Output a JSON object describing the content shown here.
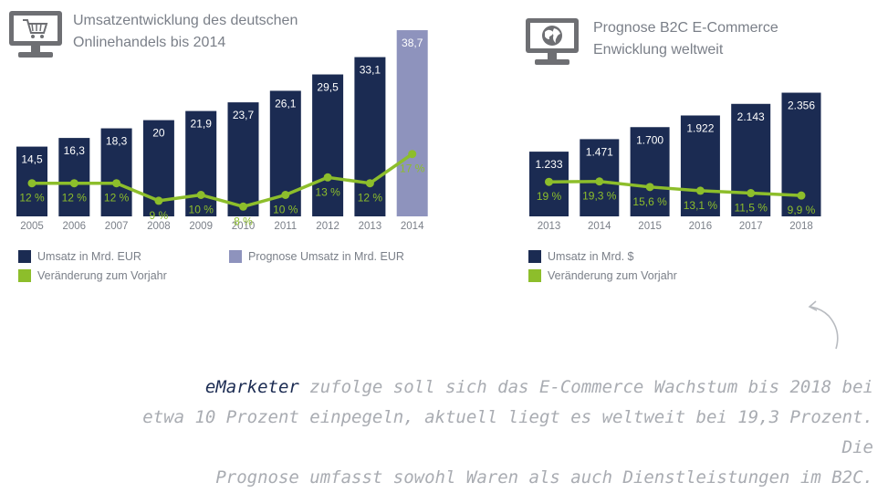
{
  "colors": {
    "bar": "#1b2b52",
    "forecast_bar": "#8e93bd",
    "line": "#8dbe2b",
    "axis_text": "#7a7f88",
    "icon": "#6e6f73"
  },
  "left": {
    "icon": "shopping-cart-monitor-icon",
    "title_line1": "Umsatzentwicklung des deutschen",
    "title_line2": "Onlinehandels bis 2014",
    "legend": {
      "umsatz": "Umsatz in Mrd. EUR",
      "prognose": "Prognose Umsatz in Mrd. EUR",
      "veraenderung": "Veränderung zum Vorjahr"
    }
  },
  "right": {
    "icon": "globe-monitor-icon",
    "title_line1": "Prognose B2C E-Commerce",
    "title_line2": "Enwicklung weltweit",
    "legend": {
      "umsatz": "Umsatz in Mrd. $",
      "veraenderung": "Veränderung zum Vorjahr"
    }
  },
  "quote": {
    "source": "eMarketer",
    "text1": " zufolge soll sich das E-Commerce Wachstum bis 2018 bei",
    "text2": "etwa 10 Prozent einpegeln, aktuell liegt es weltweit bei 19,3 Prozent. Die",
    "text3": "Prognose umfasst sowohl Waren als auch Dienstleistungen im B2C."
  },
  "decor": {
    "arrow": "curved-arrow-icon"
  },
  "chart_data": [
    {
      "type": "bar",
      "categories": [
        "2005",
        "2006",
        "2007",
        "2008",
        "2009",
        "2010",
        "2011",
        "2012",
        "2013",
        "2014"
      ],
      "series": [
        {
          "name": "Umsatz in Mrd. EUR",
          "values": [
            14.5,
            16.3,
            18.3,
            20,
            21.9,
            23.7,
            26.1,
            29.5,
            33.1,
            null
          ],
          "labels": [
            "14,5",
            "16,3",
            "18,3",
            "20",
            "21,9",
            "23,7",
            "26,1",
            "29,5",
            "33,1",
            ""
          ]
        },
        {
          "name": "Prognose Umsatz in Mrd. EUR",
          "values": [
            null,
            null,
            null,
            null,
            null,
            null,
            null,
            null,
            null,
            38.7
          ],
          "labels": [
            "",
            "",
            "",
            "",
            "",
            "",
            "",
            "",
            "",
            "38,7"
          ]
        },
        {
          "name": "Veränderung zum Vorjahr",
          "kind": "line",
          "values": [
            12,
            12,
            12,
            9,
            10,
            8,
            10,
            13,
            12,
            17
          ],
          "labels": [
            "12 %",
            "12 %",
            "12 %",
            "9 %",
            "10 %",
            "8 %",
            "10 %",
            "13 %",
            "12 %",
            "17 %"
          ]
        }
      ],
      "title": "Umsatzentwicklung des deutschen Onlinehandels bis 2014",
      "grid": false,
      "legend": "bottom"
    },
    {
      "type": "bar",
      "categories": [
        "2013",
        "2014",
        "2015",
        "2016",
        "2017",
        "2018"
      ],
      "series": [
        {
          "name": "Umsatz in Mrd. $",
          "values": [
            1233,
            1471,
            1700,
            1922,
            2143,
            2356
          ],
          "labels": [
            "1.233",
            "1.471",
            "1.700",
            "1.922",
            "2.143",
            "2.356"
          ]
        },
        {
          "name": "Veränderung zum Vorjahr",
          "kind": "line",
          "values": [
            19,
            19.3,
            15.6,
            13.1,
            11.5,
            9.9
          ],
          "labels": [
            "19 %",
            "19,3 %",
            "15,6 %",
            "13,1 %",
            "11,5 %",
            "9,9 %"
          ]
        }
      ],
      "title": "Prognose B2C E-Commerce Enwicklung weltweit",
      "grid": false,
      "legend": "bottom"
    }
  ]
}
